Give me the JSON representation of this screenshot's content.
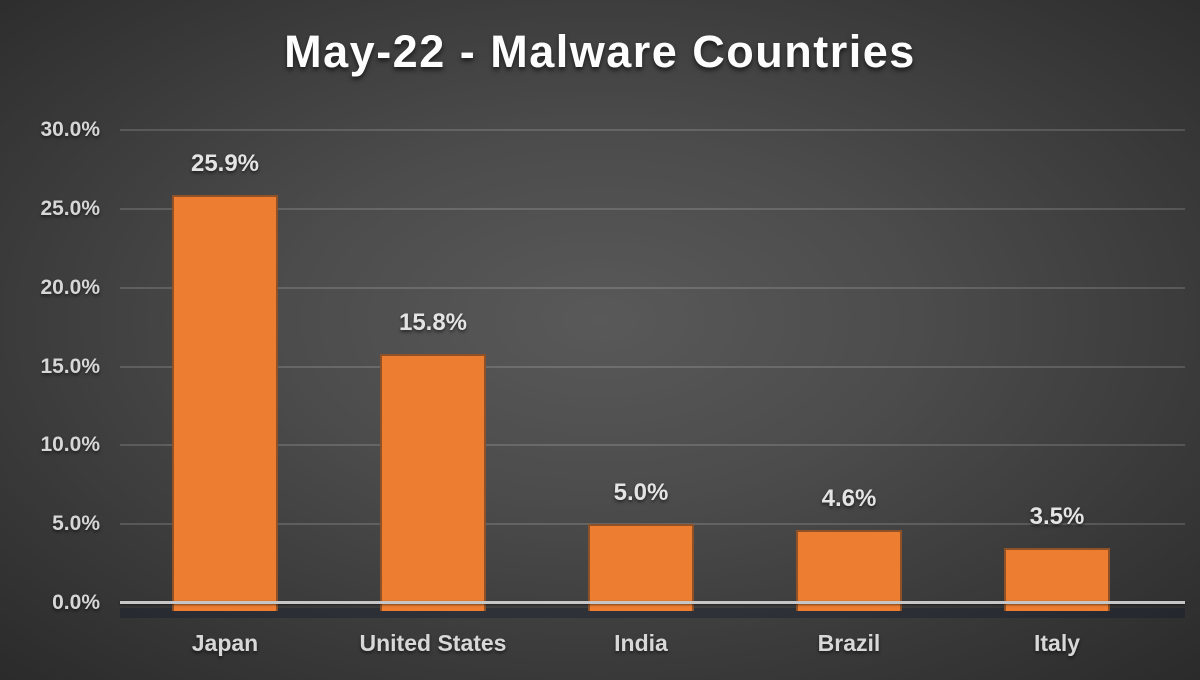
{
  "chart_data": {
    "type": "bar",
    "title": "May-22 - Malware Countries",
    "categories": [
      "Japan",
      "United States",
      "India",
      "Brazil",
      "Italy"
    ],
    "values": [
      25.9,
      15.8,
      5.0,
      4.6,
      3.5
    ],
    "data_labels": [
      "25.9%",
      "15.8%",
      "5.0%",
      "4.6%",
      "3.5%"
    ],
    "xlabel": "",
    "ylabel": "",
    "ylim": [
      0,
      30
    ],
    "yticks": {
      "values": [
        0,
        5,
        10,
        15,
        20,
        25,
        30
      ],
      "labels": [
        "0.0%",
        "5.0%",
        "10.0%",
        "15.0%",
        "20.0%",
        "25.0%",
        "30.0%"
      ]
    },
    "grid": "horizontal",
    "legend": "none",
    "colors": {
      "bar": "#ED7D31",
      "axis_line": "#C6C6C6",
      "title_text": "#FDFDFD",
      "tick_text": "#D6D6D6",
      "data_label_text": "#E4E4E4",
      "background_center": "#595959",
      "background_edge": "#252525"
    }
  }
}
